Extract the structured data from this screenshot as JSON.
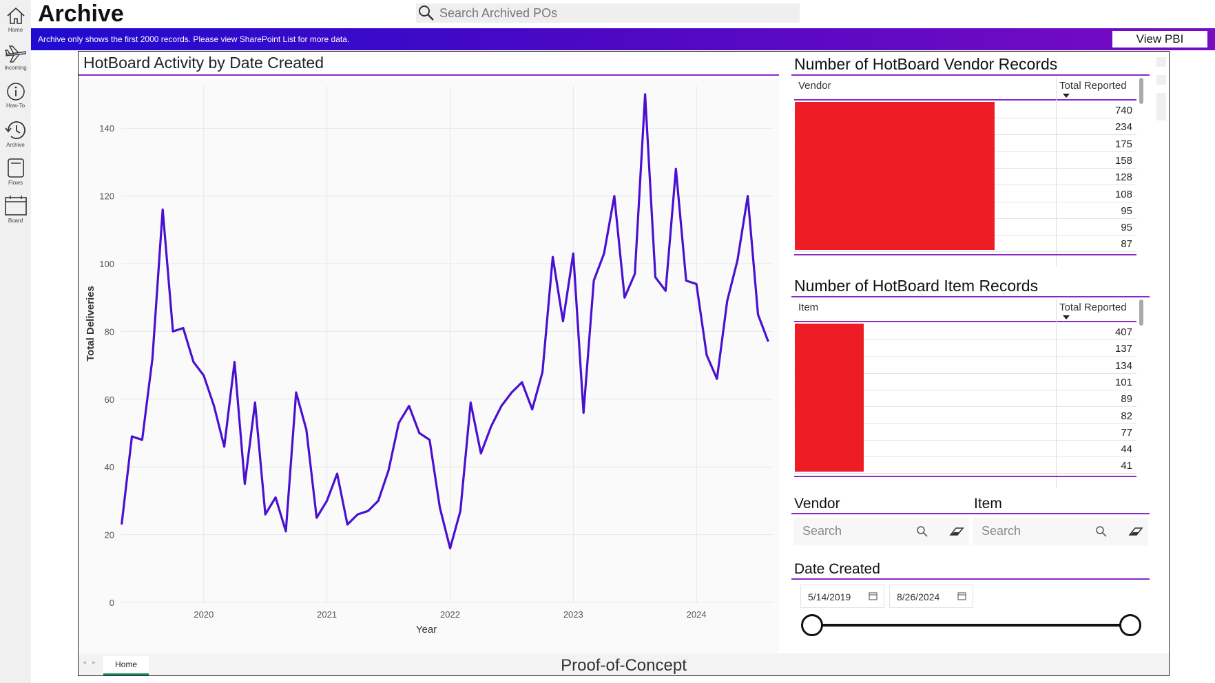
{
  "app": {
    "title": "Archive",
    "search_placeholder": "Search Archived POs",
    "banner_text": "Archive only shows the first 2000 records. Please view SharePoint List for more data.",
    "view_pbi_label": "View PBI"
  },
  "rail": {
    "items": [
      {
        "label": "Home",
        "icon": "home-icon"
      },
      {
        "label": "Incoming",
        "icon": "airplane-icon"
      },
      {
        "label": "How-To",
        "icon": "info-icon"
      },
      {
        "label": "Archive",
        "icon": "history-icon"
      },
      {
        "label": "Flows",
        "icon": "notebook-icon"
      },
      {
        "label": "Board",
        "icon": "calendar-icon"
      }
    ]
  },
  "report": {
    "footer_tab": "Home",
    "footer_caption": "Proof-of-Concept"
  },
  "chart_data": {
    "type": "line",
    "title": "HotBoard Activity by Date Created",
    "xlabel": "Year",
    "ylabel": "Total Deliveries",
    "ylim": [
      0,
      150
    ],
    "yticks": [
      "0",
      "20",
      "40",
      "60",
      "80",
      "100",
      "120",
      "140"
    ],
    "xticks": [
      "2020",
      "2021",
      "2022",
      "2023",
      "2024"
    ],
    "grid": true,
    "color": "#4a10d0",
    "series": [
      {
        "x": [
          "2019-05",
          "2019-06",
          "2019-07",
          "2019-08",
          "2019-09",
          "2019-10",
          "2019-11",
          "2019-12",
          "2020-01",
          "2020-02",
          "2020-03",
          "2020-04",
          "2020-05",
          "2020-06",
          "2020-07",
          "2020-08",
          "2020-09",
          "2020-10",
          "2020-11",
          "2020-12",
          "2021-01",
          "2021-02",
          "2021-03",
          "2021-04",
          "2021-05",
          "2021-06",
          "2021-07",
          "2021-08",
          "2021-09",
          "2021-10",
          "2021-11",
          "2021-12",
          "2022-01",
          "2022-02",
          "2022-03",
          "2022-04",
          "2022-05",
          "2022-06",
          "2022-07",
          "2022-08",
          "2022-09",
          "2022-10",
          "2022-11",
          "2022-12",
          "2023-01",
          "2023-02",
          "2023-03",
          "2023-04",
          "2023-05",
          "2023-06",
          "2023-07",
          "2023-08",
          "2023-09",
          "2023-10",
          "2023-11",
          "2023-12",
          "2024-01",
          "2024-02",
          "2024-03",
          "2024-04",
          "2024-05",
          "2024-06",
          "2024-07",
          "2024-08"
        ],
        "values": [
          23,
          49,
          48,
          72,
          116,
          80,
          81,
          71,
          67,
          58,
          46,
          71,
          35,
          59,
          26,
          31,
          21,
          62,
          51,
          25,
          30,
          38,
          23,
          26,
          27,
          30,
          39,
          53,
          58,
          50,
          48,
          28,
          16,
          27,
          59,
          44,
          52,
          58,
          62,
          65,
          57,
          68,
          102,
          83,
          103,
          56,
          95,
          103,
          120,
          90,
          97,
          150,
          96,
          92,
          128,
          95,
          94,
          73,
          66,
          89,
          101,
          120,
          85,
          77
        ]
      }
    ]
  },
  "vendor_table": {
    "title": "Number of HotBoard Vendor Records",
    "col1": "Vendor",
    "col2": "Total Reported",
    "values": [
      "740",
      "234",
      "175",
      "158",
      "128",
      "108",
      "95",
      "95",
      "87"
    ]
  },
  "item_table": {
    "title": "Number of HotBoard Item Records",
    "col1": "Item",
    "col2": "Total Reported",
    "values": [
      "407",
      "137",
      "134",
      "101",
      "89",
      "82",
      "77",
      "44",
      "41"
    ]
  },
  "slicers": {
    "vendor_title": "Vendor",
    "item_title": "Item",
    "vendor_placeholder": "Search",
    "item_placeholder": "Search",
    "date_title": "Date Created",
    "date_start": "5/14/2019",
    "date_end": "8/26/2024"
  }
}
